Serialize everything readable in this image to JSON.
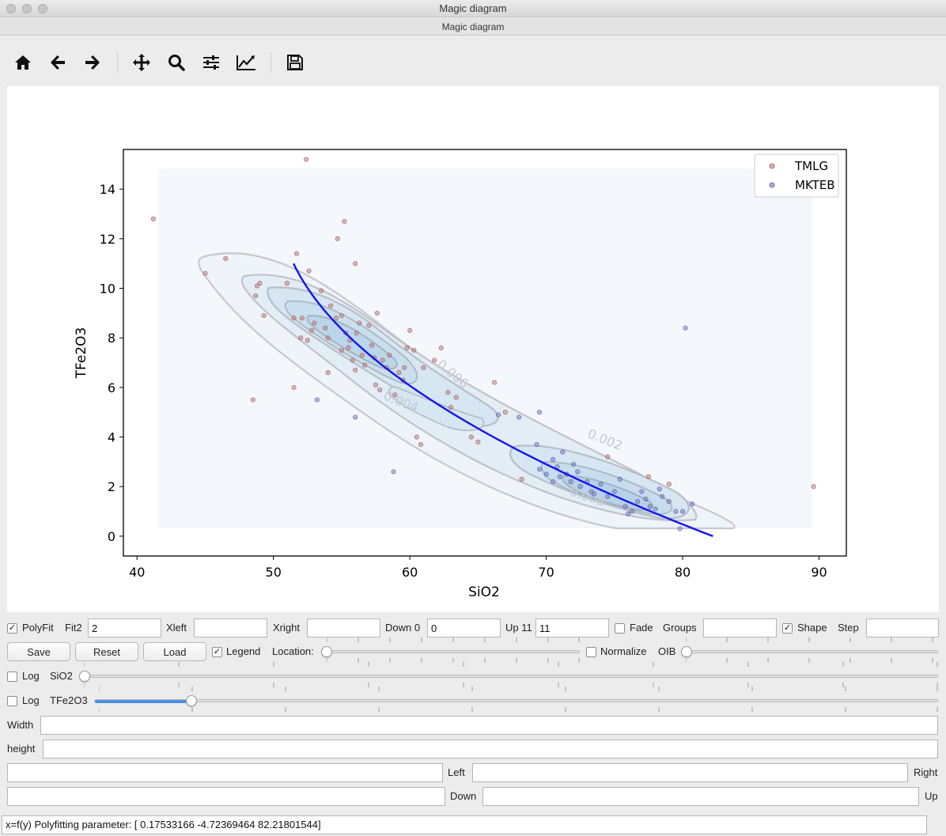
{
  "window": {
    "title": "Magic diagram",
    "subtitle": "Magic diagram"
  },
  "toolbar": {
    "tools": [
      {
        "name": "home-icon"
      },
      {
        "name": "back-icon"
      },
      {
        "name": "forward-icon"
      },
      {
        "name": "pan-icon"
      },
      {
        "name": "zoom-icon"
      },
      {
        "name": "configure-subplots-icon"
      },
      {
        "name": "edit-axis-icon"
      },
      {
        "name": "save-figure-icon"
      }
    ]
  },
  "chart_data": {
    "type": "scatter",
    "xlabel": "SiO2",
    "ylabel": "TFe2O3",
    "xlim": [
      39,
      92
    ],
    "ylim": [
      -0.8,
      15.6
    ],
    "xticks": [
      40,
      50,
      60,
      70,
      80,
      90
    ],
    "yticks": [
      0,
      2,
      4,
      6,
      8,
      10,
      12,
      14
    ],
    "legend_position": "top-right",
    "contour_labels": [
      "0.002",
      "0.004",
      "0.006",
      "0.008"
    ],
    "series": [
      {
        "name": "TMLG",
        "color": "#c08080",
        "points": [
          [
            41.2,
            12.8
          ],
          [
            45,
            10.6
          ],
          [
            46.5,
            11.2
          ],
          [
            48.5,
            5.5
          ],
          [
            48.7,
            9.7
          ],
          [
            48.8,
            10.1
          ],
          [
            49,
            10.2
          ],
          [
            49.3,
            8.9
          ],
          [
            51,
            10.2
          ],
          [
            51.5,
            6
          ],
          [
            51.5,
            8.8
          ],
          [
            51.7,
            11.4
          ],
          [
            52,
            8
          ],
          [
            52.1,
            8.8
          ],
          [
            52.4,
            15.2
          ],
          [
            52.5,
            7.9
          ],
          [
            52.6,
            10.7
          ],
          [
            52.8,
            8.3
          ],
          [
            53,
            8.6
          ],
          [
            53.5,
            9.9
          ],
          [
            53.8,
            8.4
          ],
          [
            54,
            6.6
          ],
          [
            54,
            8
          ],
          [
            54.2,
            9.3
          ],
          [
            54.6,
            8.8
          ],
          [
            54.7,
            12
          ],
          [
            55,
            7.5
          ],
          [
            55,
            8.9
          ],
          [
            55.2,
            12.7
          ],
          [
            55.3,
            8.2
          ],
          [
            55.5,
            7.6
          ],
          [
            55.6,
            7.9
          ],
          [
            55.8,
            7.1
          ],
          [
            56,
            6.7
          ],
          [
            56,
            11
          ],
          [
            56.1,
            8.2
          ],
          [
            56.3,
            8.6
          ],
          [
            56.5,
            7.3
          ],
          [
            56.7,
            6.9
          ],
          [
            57,
            8.5
          ],
          [
            57.2,
            7.7
          ],
          [
            57.4,
            7.2
          ],
          [
            57.5,
            6.1
          ],
          [
            57.6,
            9
          ],
          [
            57.8,
            5.9
          ],
          [
            58,
            7.1
          ],
          [
            58.3,
            6.8
          ],
          [
            58.5,
            7.3
          ],
          [
            58.9,
            5.7
          ],
          [
            59.2,
            6.6
          ],
          [
            59.5,
            6.3
          ],
          [
            59.6,
            6.8
          ],
          [
            59.8,
            7.6
          ],
          [
            60,
            8.3
          ],
          [
            60.3,
            7.5
          ],
          [
            60.5,
            4.0
          ],
          [
            60.8,
            3.7
          ],
          [
            61,
            6.8
          ],
          [
            61.8,
            7.1
          ],
          [
            62.3,
            7.6
          ],
          [
            62.8,
            5.8
          ],
          [
            63,
            5.2
          ],
          [
            63.4,
            5.6
          ],
          [
            64.5,
            4.0
          ],
          [
            65,
            3.8
          ],
          [
            66.2,
            6.2
          ],
          [
            67,
            5.0
          ],
          [
            68.2,
            2.3
          ],
          [
            74.5,
            3.2
          ],
          [
            77.5,
            2.4
          ],
          [
            79,
            2.1
          ],
          [
            89.6,
            2
          ]
        ]
      },
      {
        "name": "MKTEB",
        "color": "#7d7dc8",
        "points": [
          [
            53.2,
            5.5
          ],
          [
            56,
            4.8
          ],
          [
            58.8,
            2.6
          ],
          [
            66.5,
            4.9
          ],
          [
            68,
            4.8
          ],
          [
            69.5,
            5.0
          ],
          [
            69.3,
            3.7
          ],
          [
            69.5,
            2.7
          ],
          [
            70,
            2.5
          ],
          [
            70.5,
            2.2
          ],
          [
            70.5,
            3.1
          ],
          [
            70.8,
            2.8
          ],
          [
            71,
            2.4
          ],
          [
            71.2,
            3.4
          ],
          [
            71.5,
            2.5
          ],
          [
            71.8,
            2.2
          ],
          [
            72,
            2.9
          ],
          [
            72.3,
            2.6
          ],
          [
            72.5,
            2.0
          ],
          [
            73,
            2.2
          ],
          [
            73.3,
            1.8
          ],
          [
            73.5,
            1.7
          ],
          [
            74,
            2.1
          ],
          [
            74.5,
            1.6
          ],
          [
            75,
            1.8
          ],
          [
            75.4,
            2.3
          ],
          [
            75.8,
            1.2
          ],
          [
            76,
            0.9
          ],
          [
            76.3,
            1.0
          ],
          [
            76.7,
            1.4
          ],
          [
            77,
            1.8
          ],
          [
            77.3,
            1.5
          ],
          [
            77.6,
            1.2
          ],
          [
            78,
            1.1
          ],
          [
            78.3,
            1.9
          ],
          [
            78.5,
            1.6
          ],
          [
            79,
            1.4
          ],
          [
            79.5,
            1.0
          ],
          [
            79.8,
            0.3
          ],
          [
            80,
            1.0
          ],
          [
            80.2,
            8.4
          ],
          [
            80.7,
            1.3
          ]
        ]
      }
    ],
    "polyfit": {
      "color": "#1414f0",
      "label": "x=f(y)",
      "coefficients": [
        0.17533166,
        -4.72369464,
        82.21801544
      ],
      "y_range": [
        0,
        11
      ]
    }
  },
  "controls": {
    "row1": {
      "polyfit_label": "PolyFit",
      "polyfit_checked": true,
      "fit2_label": "Fit2",
      "fit2_value": "2",
      "xleft_label": "Xleft",
      "xleft_value": "",
      "xright_label": "Xright",
      "xright_value": "",
      "down_label": "Down 0",
      "down_value": "0",
      "up_label": "Up 11",
      "up_value": "11",
      "fade_label": "Fade",
      "fade_checked": false,
      "groups_label": "Groups",
      "groups_value": "",
      "shape_label": "Shape",
      "shape_checked": true,
      "step_label": "Step",
      "step_value": ""
    },
    "row2": {
      "save_label": "Save",
      "reset_label": "Reset",
      "load_label": "Load",
      "legend_label": "Legend",
      "legend_checked": true,
      "location_label": "Location:",
      "location_level": 0,
      "normalize_label": "Normalize",
      "normalize_checked": false,
      "oib_label": "OIB",
      "oib_level": 0
    },
    "row3": {
      "log_label": "Log",
      "log_checked": false,
      "axis_label": "SiO2",
      "level": 0
    },
    "row4": {
      "log_label": "Log",
      "log_checked": false,
      "axis_label": "TFe2O3",
      "level": 0.115
    },
    "width_label": "Width",
    "width_value": "",
    "height_label": "height",
    "height_value": "",
    "left_input_value": "",
    "left_label": "Left",
    "right_input_value": "",
    "right_label": "Right",
    "down_input_value": "",
    "down_label": "Down",
    "up_input_value": "",
    "up_label": "Up"
  },
  "status": {
    "text": "x=f(y) Polyfitting parameter:  [  0.17533166  -4.72369464  82.21801544]"
  }
}
